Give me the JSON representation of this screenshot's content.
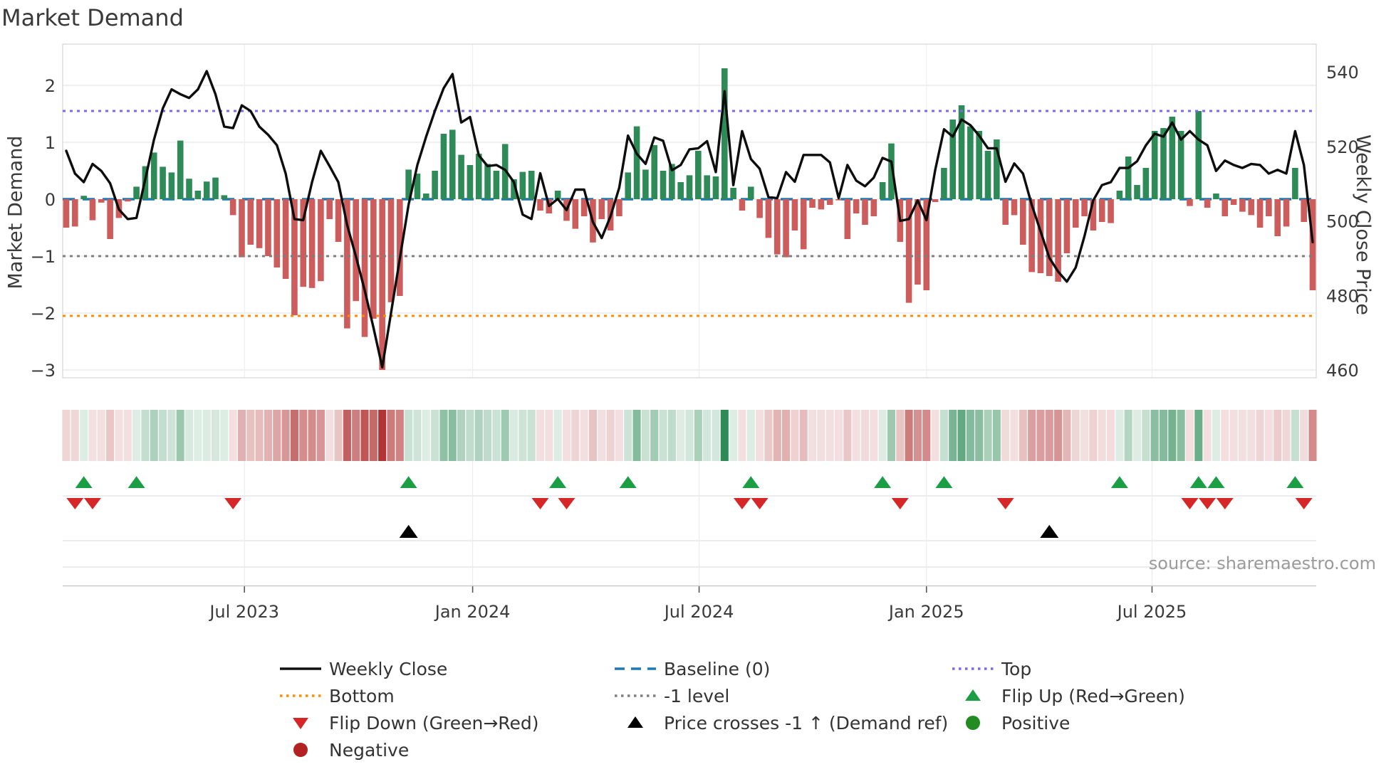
{
  "title": "Market Demand",
  "source_note": "source: sharemaestro.com",
  "axes": {
    "left_label": "Market Demand",
    "right_label": "Weekly Close Price",
    "left_ticks": [
      2,
      1,
      0,
      -1,
      -2,
      -3
    ],
    "right_ticks": [
      540,
      520,
      500,
      480,
      460
    ],
    "x_ticks": [
      {
        "label": "Jul 2023",
        "week": 20.3
      },
      {
        "label": "Jan 2024",
        "week": 46.3
      },
      {
        "label": "Jul 2024",
        "week": 72.1
      },
      {
        "label": "Jan 2025",
        "week": 98.0
      },
      {
        "label": "Jul 2025",
        "week": 123.7
      }
    ]
  },
  "chart_data": {
    "type": "bar+line",
    "x_unit": "week",
    "n_points": 143,
    "ylim_left": [
      -3.2,
      2.75
    ],
    "ylim_right": [
      455,
      548
    ],
    "grid": true,
    "reference_lines": {
      "baseline": 0,
      "top": 1.55,
      "bottom": -2.05,
      "minus_one_level": -1
    },
    "series": [
      {
        "name": "Market Demand",
        "type": "bar",
        "axis": "left",
        "values": [
          -0.5,
          -0.48,
          0.06,
          -0.37,
          -0.06,
          -0.7,
          -0.33,
          -0.04,
          0.22,
          0.58,
          0.82,
          0.57,
          0.47,
          1.03,
          0.36,
          0.15,
          0.31,
          0.38,
          0.07,
          -0.28,
          -1.02,
          -0.8,
          -0.86,
          -1.0,
          -1.2,
          -1.4,
          -2.04,
          -1.54,
          -1.56,
          -1.44,
          -0.35,
          -0.75,
          -2.27,
          -1.79,
          -2.42,
          -2.1,
          -3.0,
          -1.81,
          -1.7,
          0.52,
          0.45,
          0.1,
          0.5,
          1.15,
          1.22,
          0.78,
          0.6,
          0.8,
          0.62,
          0.5,
          0.97,
          0.35,
          0.48,
          0.5,
          -0.2,
          -0.25,
          0.15,
          -0.38,
          -0.52,
          -0.3,
          -0.76,
          -0.35,
          -0.55,
          -0.3,
          0.47,
          1.28,
          0.52,
          0.95,
          0.5,
          0.62,
          0.3,
          0.42,
          0.85,
          0.42,
          0.4,
          2.3,
          0.2,
          -0.2,
          0.22,
          -0.33,
          -0.68,
          -0.97,
          -1.02,
          -0.55,
          -0.88,
          -0.15,
          -0.18,
          -0.1,
          -0.02,
          -0.7,
          -0.25,
          -0.45,
          -0.3,
          0.3,
          0.98,
          -0.75,
          -1.82,
          -1.5,
          -1.6,
          -0.05,
          0.55,
          1.4,
          1.65,
          1.28,
          1.2,
          0.85,
          1.05,
          -0.45,
          -0.28,
          -0.8,
          -1.28,
          -1.3,
          -1.35,
          -1.45,
          -0.95,
          -0.5,
          -0.3,
          -0.55,
          -0.4,
          -0.42,
          0.15,
          0.75,
          0.25,
          0.55,
          1.2,
          1.25,
          1.45,
          1.2,
          -0.12,
          1.55,
          -0.15,
          0.1,
          -0.3,
          -0.1,
          -0.22,
          -0.28,
          -0.5,
          -0.3,
          -0.65,
          -0.48,
          0.55,
          -0.4,
          -1.6
        ]
      },
      {
        "name": "Weekly Close",
        "type": "line",
        "axis": "right",
        "values": [
          518.8,
          512.7,
          510.4,
          515.3,
          513.4,
          510.1,
          503.1,
          500.5,
          500.8,
          511.1,
          521.8,
          530.2,
          535.3,
          534.0,
          533.0,
          535.3,
          540.2,
          534.0,
          525.3,
          524.9,
          531.0,
          529.5,
          525.3,
          523.1,
          520.3,
          512.7,
          500.5,
          500.2,
          510.4,
          518.8,
          514.7,
          510.4,
          498.9,
          490.5,
          481.4,
          471.4,
          460.7,
          475.3,
          489.8,
          504.3,
          515.0,
          522.6,
          529.5,
          535.6,
          539.4,
          526.4,
          527.9,
          517.6,
          514.7,
          515.0,
          513.7,
          510.4,
          501.7,
          500.5,
          512.8,
          504.0,
          505.9,
          502.9,
          508.4,
          508.4,
          499.7,
          495.4,
          501.2,
          508.9,
          522.9,
          518.0,
          515.3,
          522.4,
          521.5,
          513.6,
          515.0,
          519.2,
          519.5,
          521.4,
          513.1,
          534.8,
          509.6,
          524.1,
          516.6,
          514.0,
          506.4,
          506.1,
          513.1,
          510.5,
          517.7,
          517.7,
          517.7,
          515.7,
          506.1,
          515.0,
          510.8,
          509.3,
          511.6,
          516.9,
          515.9,
          500.0,
          500.5,
          505.5,
          500.2,
          513.7,
          524.6,
          522.6,
          527.2,
          525.7,
          522.9,
          519.5,
          519.5,
          510.5,
          515.4,
          512.7,
          504.3,
          497.2,
          490.1,
          486.4,
          483.7,
          487.5,
          495.9,
          505.5,
          509.6,
          510.4,
          514.2,
          514.2,
          516.0,
          520.3,
          523.4,
          522.6,
          526.4,
          521.8,
          524.1,
          521.8,
          520.3,
          513.4,
          516.2,
          515.0,
          514.2,
          515.3,
          515.0,
          512.7,
          513.7,
          512.7,
          524.1,
          515.0,
          494.3
        ]
      }
    ],
    "heatmap_strip": {
      "note": "weekly demand intensity strip, green positive / red negative, same values as Market Demand bars"
    },
    "markers": {
      "flip_up_weeks": [
        2,
        8,
        39,
        56,
        64,
        78,
        93,
        100,
        120,
        129,
        131,
        140
      ],
      "flip_down_weeks": [
        1,
        3,
        19,
        54,
        57,
        77,
        79,
        95,
        107,
        128,
        130,
        132,
        141
      ],
      "price_cross_up_weeks": [
        39,
        112
      ]
    }
  },
  "legend": {
    "items": [
      {
        "label": "Weekly Close",
        "swatch": "line",
        "color": "#111111",
        "col": 0,
        "row": 0
      },
      {
        "label": "Baseline (0)",
        "swatch": "dash",
        "color": "#1f77b4",
        "col": 1,
        "row": 0
      },
      {
        "label": "Top",
        "swatch": "dot",
        "color": "#7b68ee",
        "col": 2,
        "row": 0
      },
      {
        "label": "Bottom",
        "swatch": "dot",
        "color": "#ff8c00",
        "col": 0,
        "row": 1
      },
      {
        "label": "-1 level",
        "swatch": "dot",
        "color": "#7f7f7f",
        "col": 1,
        "row": 1
      },
      {
        "label": "Flip Up (Red→Green)",
        "swatch": "tri_up",
        "color": "#1c9e45",
        "col": 2,
        "row": 1
      },
      {
        "label": "Flip Down (Green→Red)",
        "swatch": "tri_down",
        "color": "#d62728",
        "col": 0,
        "row": 2
      },
      {
        "label": "Price crosses -1 ↑ (Demand ref)",
        "swatch": "tri_up",
        "color": "#000000",
        "col": 1,
        "row": 2
      },
      {
        "label": "Positive",
        "swatch": "circle",
        "color": "#228b22",
        "col": 2,
        "row": 2
      },
      {
        "label": "Negative",
        "swatch": "circle",
        "color": "#b22222",
        "col": 0,
        "row": 3
      }
    ]
  },
  "colors": {
    "bar_positive": "#2e8b57",
    "bar_negative": "#cd5c5c",
    "price_line": "#0d0d0d",
    "baseline": "#1f77b4",
    "top_line": "#7b68ee",
    "bottom_line": "#ff8c00",
    "minus_one_line": "#7f7f7f",
    "flip_up": "#1c9e45",
    "flip_down": "#d62728",
    "price_cross": "#000000",
    "heat_green_max": "#2e8b57",
    "heat_red_max": "#b23434",
    "grid": "#e8e8e8",
    "tick_text": "#3a3a3a"
  }
}
